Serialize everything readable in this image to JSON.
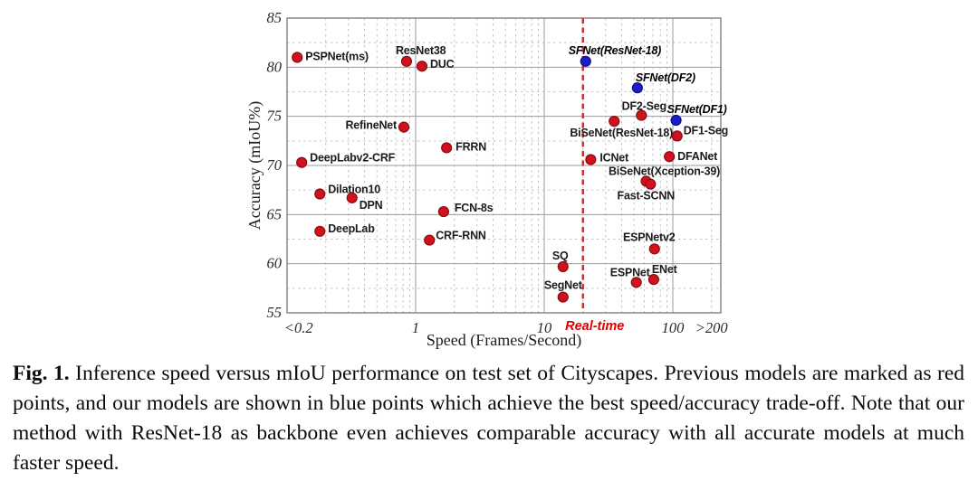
{
  "figure": {
    "caption_label": "Fig. 1.",
    "caption_text": "Inference speed versus mIoU performance on test set of Cityscapes. Previous models are marked as red points, and our models are shown in blue points which achieve the best speed/accuracy trade-off. Note that our method with ResNet-18 as backbone even achieves comparable accuracy with all accurate models at much faster speed."
  },
  "chart_data": {
    "type": "scatter",
    "title": "",
    "xlabel": "Speed (Frames/Second)",
    "ylabel": "Accuracy (mIoU%)",
    "x_scale": "log",
    "xlim": [
      0.1,
      236
    ],
    "ylim": [
      55,
      85
    ],
    "grid": "major solid gray lines, dashed minor gridlines (log minors on x, 2.5-unit minors on y)",
    "x_ticks": [
      {
        "label": "<0.2",
        "value": 0.123
      },
      {
        "label": "1",
        "value": 1
      },
      {
        "label": "10",
        "value": 10
      },
      {
        "label": "100",
        "value": 100
      },
      {
        "label": ">200",
        "value": 200
      }
    ],
    "y_ticks": [
      55,
      60,
      65,
      70,
      75,
      80,
      85
    ],
    "realtime_line": {
      "label": "Real-time",
      "value": 20,
      "color": "#c03030"
    },
    "series": [
      {
        "name": "Previous models (red points)",
        "dot_color": "#d0121c",
        "dot_stroke": "#8a0b12",
        "label_color": "#1b1b1b",
        "label_style": "bold",
        "points": [
          {
            "name": "PSPNet(ms)",
            "x": 0.12,
            "y": 81.0,
            "anchor": "start",
            "dx": 9,
            "dy": 3
          },
          {
            "name": "ResNet38",
            "x": 0.85,
            "y": 80.6,
            "anchor": "start",
            "dx": -12,
            "dy": -8
          },
          {
            "name": "DUC",
            "x": 1.12,
            "y": 80.1,
            "anchor": "start",
            "dx": 9,
            "dy": 2
          },
          {
            "name": "RefineNet",
            "x": 0.81,
            "y": 73.9,
            "anchor": "end",
            "dx": -8,
            "dy": 2
          },
          {
            "name": "FRRN",
            "x": 1.74,
            "y": 71.8,
            "anchor": "start",
            "dx": 10,
            "dy": 3
          },
          {
            "name": "DeepLabv2-CRF",
            "x": 0.13,
            "y": 70.3,
            "anchor": "start",
            "dx": 9,
            "dy": -1
          },
          {
            "name": "Dilation10",
            "x": 0.18,
            "y": 67.1,
            "anchor": "start",
            "dx": 9,
            "dy": -1
          },
          {
            "name": "DPN",
            "x": 0.32,
            "y": 66.7,
            "anchor": "start",
            "dx": 8,
            "dy": 12
          },
          {
            "name": "FCN-8s",
            "x": 1.65,
            "y": 65.3,
            "anchor": "start",
            "dx": 12,
            "dy": 0
          },
          {
            "name": "DeepLab",
            "x": 0.18,
            "y": 63.3,
            "anchor": "start",
            "dx": 9,
            "dy": 1
          },
          {
            "name": "CRF-RNN",
            "x": 1.28,
            "y": 62.4,
            "anchor": "start",
            "dx": 7,
            "dy": -1
          },
          {
            "name": "SQ",
            "x": 14,
            "y": 59.7,
            "anchor": "middle",
            "dx": -3,
            "dy": -8
          },
          {
            "name": "SegNet",
            "x": 14,
            "y": 56.6,
            "anchor": "middle",
            "dx": 0,
            "dy": -9
          },
          {
            "name": "ICNet",
            "x": 23,
            "y": 70.6,
            "anchor": "start",
            "dx": 10,
            "dy": 2
          },
          {
            "name": "DFANet",
            "x": 94,
            "y": 70.9,
            "anchor": "start",
            "dx": 9,
            "dy": 4
          },
          {
            "name": "BiSeNet(ResNet-18)",
            "x": 35,
            "y": 74.5,
            "anchor": "middle",
            "dx": 8,
            "dy": 17
          },
          {
            "name": "DF2-Seg",
            "x": 57,
            "y": 75.1,
            "anchor": "middle",
            "dx": 3,
            "dy": -6
          },
          {
            "name": "DF1-Seg",
            "x": 108,
            "y": 73.0,
            "anchor": "start",
            "dx": 7,
            "dy": -2
          },
          {
            "name": "BiSeNet(Xception-39)",
            "x": 62,
            "y": 68.4,
            "anchor": "middle",
            "dx": 20,
            "dy": -7
          },
          {
            "name": "Fast-SCNN",
            "x": 67,
            "y": 68.1,
            "anchor": "middle",
            "dx": -5,
            "dy": 17
          },
          {
            "name": "ESPNetv2",
            "x": 72,
            "y": 61.5,
            "anchor": "middle",
            "dx": -6,
            "dy": -9
          },
          {
            "name": "ESPNet",
            "x": 52,
            "y": 58.1,
            "anchor": "middle",
            "dx": -7,
            "dy": -7
          },
          {
            "name": "ENet",
            "x": 71,
            "y": 58.4,
            "anchor": "start",
            "dx": -2,
            "dy": -7
          }
        ]
      },
      {
        "name": "Our models (blue points)",
        "dot_color": "#1c1ccc",
        "dot_stroke": "#0e0e80",
        "label_color": "#000000",
        "label_style": "bold-italic",
        "points": [
          {
            "name": "SFNet(ResNet-18)",
            "x": 21,
            "y": 80.6,
            "anchor": "start",
            "dx": -19,
            "dy": -8
          },
          {
            "name": "SFNet(DF2)",
            "x": 53,
            "y": 77.9,
            "anchor": "start",
            "dx": -2,
            "dy": -7
          },
          {
            "name": "SFNet(DF1)",
            "x": 106,
            "y": 74.6,
            "anchor": "start",
            "dx": -10,
            "dy": -8
          }
        ]
      }
    ]
  }
}
